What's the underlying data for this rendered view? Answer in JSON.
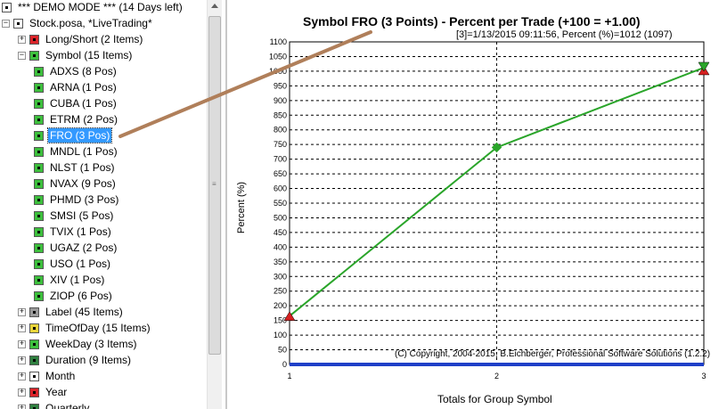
{
  "tree": {
    "items": [
      {
        "label": "*** DEMO MODE *** (14 Days left)",
        "expander": "",
        "icon": "demo-mode-icon",
        "color": "#ffffff"
      },
      {
        "label": "Stock.posa, *LiveTrading*",
        "expander": "−",
        "icon": "document-icon",
        "color": "#ffffff"
      },
      {
        "label": "Long/Short (2 Items)",
        "expander": "+",
        "icon": "long-short-icon",
        "color": "#d9242a"
      },
      {
        "label": "Symbol (15 Items)",
        "expander": "−",
        "icon": "symbol-group-icon",
        "color": "#3dbf3d"
      },
      {
        "label": "ADXS (8 Pos)",
        "expander": "",
        "icon": "symbol-icon",
        "color": "#3dbf3d"
      },
      {
        "label": "ARNA (1 Pos)",
        "expander": "",
        "icon": "symbol-icon",
        "color": "#3dbf3d"
      },
      {
        "label": "CUBA (1 Pos)",
        "expander": "",
        "icon": "symbol-icon",
        "color": "#3dbf3d"
      },
      {
        "label": "ETRM (2 Pos)",
        "expander": "",
        "icon": "symbol-icon",
        "color": "#3dbf3d"
      },
      {
        "label": "FRO (3 Pos)",
        "expander": "",
        "icon": "symbol-icon",
        "color": "#3dbf3d",
        "selected": true
      },
      {
        "label": "MNDL (1 Pos)",
        "expander": "",
        "icon": "symbol-icon",
        "color": "#3dbf3d"
      },
      {
        "label": "NLST (1 Pos)",
        "expander": "",
        "icon": "symbol-icon",
        "color": "#3dbf3d"
      },
      {
        "label": "NVAX (9 Pos)",
        "expander": "",
        "icon": "symbol-icon",
        "color": "#3dbf3d"
      },
      {
        "label": "PHMD (3 Pos)",
        "expander": "",
        "icon": "symbol-icon",
        "color": "#3dbf3d"
      },
      {
        "label": "SMSI (5 Pos)",
        "expander": "",
        "icon": "symbol-icon",
        "color": "#3dbf3d"
      },
      {
        "label": "TVIX (1 Pos)",
        "expander": "",
        "icon": "symbol-icon",
        "color": "#3dbf3d"
      },
      {
        "label": "UGAZ (2 Pos)",
        "expander": "",
        "icon": "symbol-icon",
        "color": "#3dbf3d"
      },
      {
        "label": "USO (1 Pos)",
        "expander": "",
        "icon": "symbol-icon",
        "color": "#3dbf3d"
      },
      {
        "label": "XIV (1 Pos)",
        "expander": "",
        "icon": "symbol-icon",
        "color": "#3dbf3d"
      },
      {
        "label": "ZIOP (6 Pos)",
        "expander": "",
        "icon": "symbol-icon",
        "color": "#3dbf3d"
      },
      {
        "label": "Label (45 Items)",
        "expander": "+",
        "icon": "label-group-icon",
        "color": "#9a9a9a"
      },
      {
        "label": "TimeOfDay (15 Items)",
        "expander": "+",
        "icon": "time-of-day-icon",
        "color": "#e8d43a"
      },
      {
        "label": "WeekDay (3 Items)",
        "expander": "+",
        "icon": "weekday-icon",
        "color": "#3dbf3d"
      },
      {
        "label": "Duration (9 Items)",
        "expander": "+",
        "icon": "duration-icon",
        "color": "#2f7f3f"
      },
      {
        "label": "Month",
        "expander": "+",
        "icon": "month-icon",
        "color": "#ffffff"
      },
      {
        "label": "Year",
        "expander": "+",
        "icon": "year-icon",
        "color": "#d9242a"
      },
      {
        "label": "Quarterly",
        "expander": "+",
        "icon": "quarterly-icon",
        "color": "#2f7f3f"
      }
    ]
  },
  "chart": {
    "title": "Symbol FRO (3 Points) - Percent per Trade (+100 = +1.00)",
    "subtitle": "[3]=1/13/2015 09:11:56,   Percent (%)=1012 (1097)",
    "copyright": "(C) Copyright, 2004-2015, B.Eichberger, Professional Software Solutions (1.2.2)"
  },
  "chart_data": {
    "type": "line",
    "xlabel": "Totals for Group Symbol",
    "ylabel": "Percent (%)",
    "x": [
      1,
      2,
      3
    ],
    "x_ticks": [
      "1",
      "2",
      "3"
    ],
    "ylim": [
      0,
      1100
    ],
    "y_ticks": [
      "0",
      "50",
      "100",
      "150",
      "200",
      "250",
      "300",
      "350",
      "400",
      "450",
      "500",
      "550",
      "600",
      "650",
      "700",
      "750",
      "800",
      "850",
      "900",
      "950",
      "1000",
      "1050",
      "1100"
    ],
    "grid": true,
    "series": [
      {
        "values": [
          165,
          740,
          1012
        ],
        "color": "#2aa52a"
      }
    ],
    "baseline": {
      "value": 0,
      "color": "#1f3fc8"
    },
    "marker_colors": {
      "start": "#d62020",
      "point": "#2aa52a"
    },
    "annotation_arrow": {
      "from": "tree-item-fro",
      "color": "#b07f5a"
    }
  }
}
